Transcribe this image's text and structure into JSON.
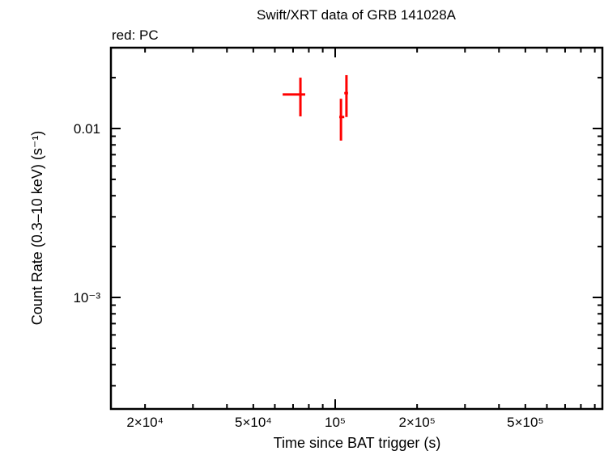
{
  "chart_data": {
    "type": "scatter",
    "title": "Swift/XRT data of GRB 141028A",
    "subtitle": "red: PC",
    "xlabel": "Time since BAT trigger (s)",
    "ylabel": "Count Rate (0.3–10 keV) (s⁻¹)",
    "xscale": "log",
    "yscale": "log",
    "xlim": [
      16000,
      900000
    ],
    "ylim": [
      0.0002,
      0.028
    ],
    "x_tick_labels": [
      "2×10⁴",
      "5×10⁴",
      "10⁵",
      "2×10⁵",
      "5×10⁵"
    ],
    "x_tick_values": [
      20000,
      50000,
      100000,
      200000,
      500000
    ],
    "y_tick_labels": [
      "0.01",
      "10⁻³"
    ],
    "y_tick_values": [
      0.01,
      0.001
    ],
    "grid": false,
    "series": [
      {
        "name": "PC",
        "color": "#ff0000",
        "points": [
          {
            "x": 74500,
            "x_lo": 64100,
            "x_hi": 77600,
            "y": 0.0159,
            "y_lo": 0.0118,
            "y_hi": 0.02
          },
          {
            "x": 105000,
            "x_lo": 103500,
            "x_hi": 108000,
            "y": 0.0117,
            "y_lo": 0.00848,
            "y_hi": 0.015
          },
          {
            "x": 110000,
            "x_lo": 108000,
            "x_hi": 111500,
            "y": 0.0162,
            "y_lo": 0.0117,
            "y_hi": 0.0207
          }
        ]
      }
    ]
  }
}
